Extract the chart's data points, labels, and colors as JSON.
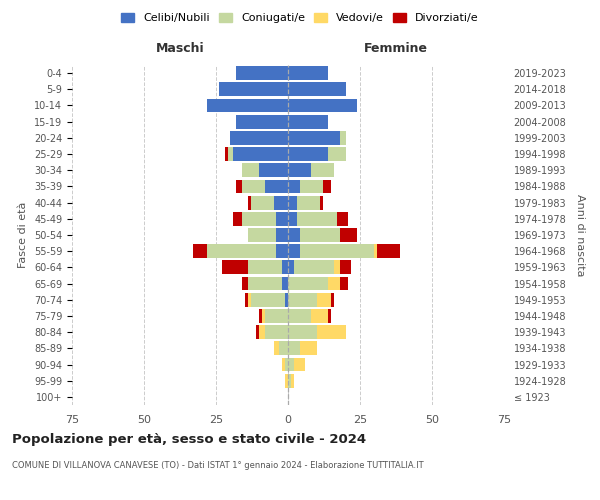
{
  "age_groups": [
    "100+",
    "95-99",
    "90-94",
    "85-89",
    "80-84",
    "75-79",
    "70-74",
    "65-69",
    "60-64",
    "55-59",
    "50-54",
    "45-49",
    "40-44",
    "35-39",
    "30-34",
    "25-29",
    "20-24",
    "15-19",
    "10-14",
    "5-9",
    "0-4"
  ],
  "birth_years": [
    "≤ 1923",
    "1924-1928",
    "1929-1933",
    "1934-1938",
    "1939-1943",
    "1944-1948",
    "1949-1953",
    "1954-1958",
    "1959-1963",
    "1964-1968",
    "1969-1973",
    "1974-1978",
    "1979-1983",
    "1984-1988",
    "1989-1993",
    "1994-1998",
    "1999-2003",
    "2004-2008",
    "2009-2013",
    "2014-2018",
    "2019-2023"
  ],
  "male": {
    "celibi": [
      0,
      0,
      0,
      0,
      0,
      0,
      1,
      2,
      2,
      4,
      4,
      4,
      5,
      8,
      10,
      19,
      20,
      18,
      28,
      24,
      18
    ],
    "coniugati": [
      0,
      0,
      1,
      3,
      8,
      8,
      12,
      12,
      12,
      24,
      10,
      12,
      8,
      8,
      6,
      2,
      0,
      0,
      0,
      0,
      0
    ],
    "vedovi": [
      0,
      1,
      1,
      2,
      2,
      1,
      1,
      0,
      0,
      0,
      0,
      0,
      0,
      0,
      0,
      0,
      0,
      0,
      0,
      0,
      0
    ],
    "divorziati": [
      0,
      0,
      0,
      0,
      1,
      1,
      1,
      2,
      9,
      5,
      0,
      3,
      1,
      2,
      0,
      1,
      0,
      0,
      0,
      0,
      0
    ]
  },
  "female": {
    "nubili": [
      0,
      0,
      0,
      0,
      0,
      0,
      0,
      0,
      2,
      4,
      4,
      3,
      3,
      4,
      8,
      14,
      18,
      14,
      24,
      20,
      14
    ],
    "coniugate": [
      0,
      1,
      2,
      4,
      10,
      8,
      10,
      14,
      14,
      26,
      14,
      14,
      8,
      8,
      8,
      6,
      2,
      0,
      0,
      0,
      0
    ],
    "vedove": [
      0,
      1,
      4,
      6,
      10,
      6,
      5,
      4,
      2,
      1,
      0,
      0,
      0,
      0,
      0,
      0,
      0,
      0,
      0,
      0,
      0
    ],
    "divorziate": [
      0,
      0,
      0,
      0,
      0,
      1,
      1,
      3,
      4,
      8,
      6,
      4,
      1,
      3,
      0,
      0,
      0,
      0,
      0,
      0,
      0
    ]
  },
  "colors": {
    "celibi": "#4472C4",
    "coniugati": "#c5d8a0",
    "vedovi": "#FFD966",
    "divorziati": "#C00000"
  },
  "title": "Popolazione per età, sesso e stato civile - 2024",
  "subtitle": "COMUNE DI VILLANOVA CANAVESE (TO) - Dati ISTAT 1° gennaio 2024 - Elaborazione TUTTITALIA.IT",
  "xlabel_left": "Maschi",
  "xlabel_right": "Femmine",
  "ylabel_left": "Fasce di età",
  "ylabel_right": "Anni di nascita",
  "xlim": 75,
  "background_color": "#ffffff",
  "grid_color": "#cccccc"
}
